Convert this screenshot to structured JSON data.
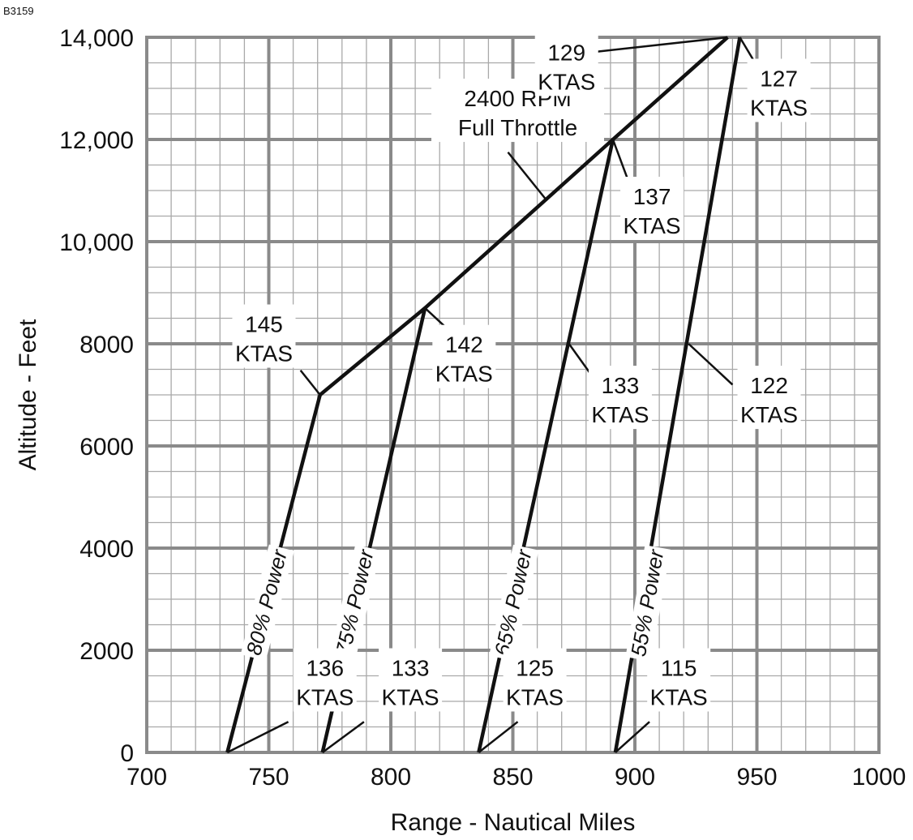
{
  "figure_id": "B3159",
  "chart_data": {
    "type": "line",
    "title": "",
    "xlabel": "Range - Nautical Miles",
    "ylabel": "Altitude - Feet",
    "xlim": [
      700,
      1000
    ],
    "ylim": [
      0,
      14000
    ],
    "grid": true,
    "x_ticks": [
      {
        "value": 700,
        "label": "700"
      },
      {
        "value": 750,
        "label": "750"
      },
      {
        "value": 800,
        "label": "800"
      },
      {
        "value": 850,
        "label": "850"
      },
      {
        "value": 900,
        "label": "900"
      },
      {
        "value": 950,
        "label": "950"
      },
      {
        "value": 1000,
        "label": "1000"
      }
    ],
    "y_ticks": [
      {
        "value": 0,
        "label": "0"
      },
      {
        "value": 2000,
        "label": "2000"
      },
      {
        "value": 4000,
        "label": "4000"
      },
      {
        "value": 6000,
        "label": "6000"
      },
      {
        "value": 8000,
        "label": "8000"
      },
      {
        "value": 10000,
        "label": "10,000"
      },
      {
        "value": 12000,
        "label": "12,000"
      },
      {
        "value": 14000,
        "label": "14,000"
      }
    ],
    "series": [
      {
        "name": "80% Power",
        "points": [
          {
            "x": 733,
            "y": 0
          },
          {
            "x": 771,
            "y": 7000
          }
        ]
      },
      {
        "name": "75% Power",
        "points": [
          {
            "x": 772,
            "y": 0
          },
          {
            "x": 814,
            "y": 8700
          }
        ]
      },
      {
        "name": "65% Power",
        "points": [
          {
            "x": 836,
            "y": 0
          },
          {
            "x": 891,
            "y": 12000
          }
        ]
      },
      {
        "name": "55% Power",
        "points": [
          {
            "x": 892,
            "y": 0
          },
          {
            "x": 943,
            "y": 14000
          }
        ]
      },
      {
        "name": "2400 RPM Full Throttle",
        "points": [
          {
            "x": 771,
            "y": 7000
          },
          {
            "x": 814,
            "y": 8700
          },
          {
            "x": 891,
            "y": 12000
          },
          {
            "x": 938,
            "y": 14000
          }
        ]
      }
    ],
    "series_labels": [
      {
        "series": "80% Power",
        "text": "80% Power",
        "x": 752,
        "y": 2900
      },
      {
        "series": "75% Power",
        "text": "75% Power",
        "x": 788,
        "y": 2900
      },
      {
        "series": "65% Power",
        "text": "65% Power",
        "x": 853,
        "y": 2900
      },
      {
        "series": "55% Power",
        "text": "55% Power",
        "x": 908,
        "y": 2900
      }
    ],
    "annotations": [
      {
        "lines": [
          "2400 RPM",
          "Full Throttle"
        ],
        "text_x": 852,
        "text_y": 12650,
        "anchor": "middle",
        "leader_from": {
          "x": 848,
          "y": 11750
        },
        "leader_to": {
          "x": 864,
          "y": 10800
        }
      },
      {
        "lines": [
          "129",
          "KTAS"
        ],
        "text_x": 872,
        "text_y": 13550,
        "anchor": "middle",
        "leader_from": {
          "x": 881,
          "y": 13700
        },
        "leader_to": {
          "x": 938,
          "y": 14000
        }
      },
      {
        "lines": [
          "127",
          "KTAS"
        ],
        "text_x": 959,
        "text_y": 13040,
        "anchor": "middle",
        "leader_from": {
          "x": 953,
          "y": 13200
        },
        "leader_to": {
          "x": 943,
          "y": 14000
        }
      },
      {
        "lines": [
          "137",
          "KTAS"
        ],
        "text_x": 907,
        "text_y": 10730,
        "anchor": "middle",
        "leader_from": {
          "x": 898,
          "y": 11100
        },
        "leader_to": {
          "x": 891,
          "y": 12000
        }
      },
      {
        "lines": [
          "145",
          "KTAS"
        ],
        "text_x": 748,
        "text_y": 8230,
        "anchor": "middle",
        "leader_from": {
          "x": 763,
          "y": 7480
        },
        "leader_to": {
          "x": 771,
          "y": 7000
        }
      },
      {
        "lines": [
          "142",
          "KTAS"
        ],
        "text_x": 830,
        "text_y": 7830,
        "anchor": "middle",
        "leader_from": {
          "x": 823,
          "y": 8300
        },
        "leader_to": {
          "x": 814,
          "y": 8700
        }
      },
      {
        "lines": [
          "133",
          "KTAS"
        ],
        "text_x": 894,
        "text_y": 7030,
        "anchor": "middle",
        "leader_from": {
          "x": 885,
          "y": 7200
        },
        "leader_to": {
          "x": 873,
          "y": 8000
        }
      },
      {
        "lines": [
          "122",
          "KTAS"
        ],
        "text_x": 955,
        "text_y": 7030,
        "anchor": "middle",
        "leader_from": {
          "x": 940,
          "y": 7200
        },
        "leader_to": {
          "x": 922,
          "y": 8000
        }
      },
      {
        "lines": [
          "136",
          "KTAS"
        ],
        "text_x": 773,
        "text_y": 1500,
        "anchor": "middle",
        "leader_from": {
          "x": 758,
          "y": 600
        },
        "leader_to": {
          "x": 733,
          "y": 0
        }
      },
      {
        "lines": [
          "133",
          "KTAS"
        ],
        "text_x": 808,
        "text_y": 1500,
        "anchor": "middle",
        "leader_from": {
          "x": 789,
          "y": 600
        },
        "leader_to": {
          "x": 772,
          "y": 0
        }
      },
      {
        "lines": [
          "125",
          "KTAS"
        ],
        "text_x": 859,
        "text_y": 1500,
        "anchor": "middle",
        "leader_from": {
          "x": 852,
          "y": 600
        },
        "leader_to": {
          "x": 836,
          "y": 0
        }
      },
      {
        "lines": [
          "115",
          "KTAS"
        ],
        "text_x": 918,
        "text_y": 1500,
        "anchor": "middle",
        "leader_from": {
          "x": 906,
          "y": 600
        },
        "leader_to": {
          "x": 892,
          "y": 0
        }
      }
    ]
  }
}
